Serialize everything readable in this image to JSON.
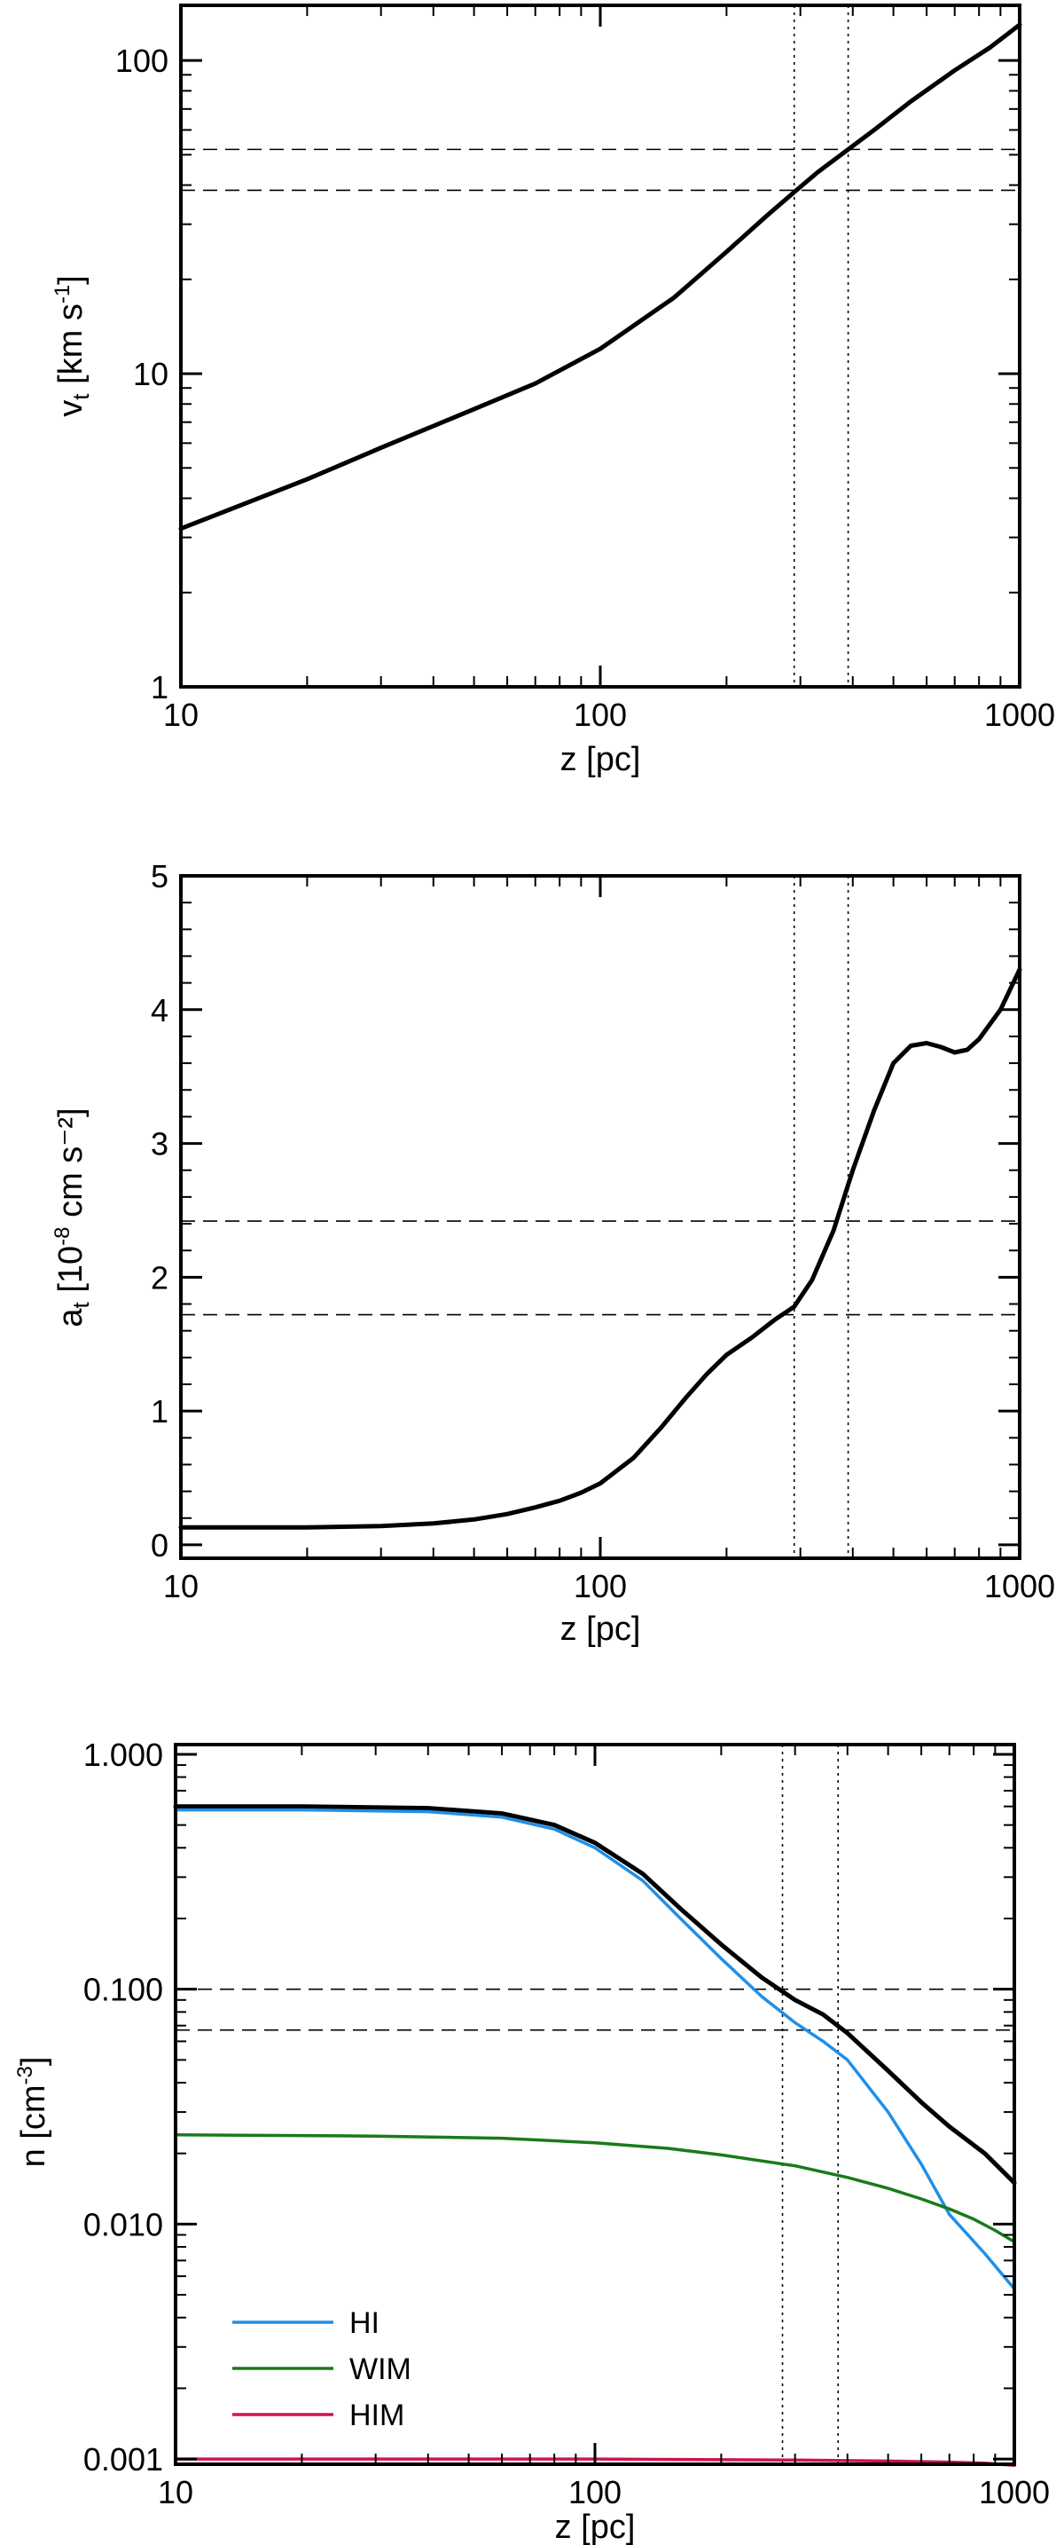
{
  "chart_data": [
    {
      "type": "line",
      "xscale": "log",
      "yscale": "log",
      "xlim": [
        10,
        1000
      ],
      "ylim": [
        1,
        150
      ],
      "xticks": [
        {
          "v": 10,
          "label": "10"
        },
        {
          "v": 100,
          "label": "100"
        },
        {
          "v": 1000,
          "label": "1000"
        }
      ],
      "yticks": [
        {
          "v": 1,
          "label": "1"
        },
        {
          "v": 10,
          "label": "10"
        },
        {
          "v": 100,
          "label": "100"
        }
      ],
      "xlabel": "z [pc]",
      "ylabel": {
        "base": "v",
        "sub": "t",
        "rest": " [km s",
        "sup": "-1",
        "end": "]"
      },
      "series": [
        {
          "color": "#000000",
          "x": [
            10,
            20,
            30,
            50,
            70,
            100,
            150,
            200,
            250,
            290,
            330,
            390,
            450,
            550,
            700,
            850,
            1000
          ],
          "y": [
            3.2,
            4.6,
            5.8,
            7.7,
            9.3,
            12,
            17.5,
            24.5,
            32,
            38,
            44,
            52,
            60,
            74,
            93,
            110,
            130
          ]
        }
      ],
      "hlines": [
        52,
        38.5
      ],
      "vlines": [
        290,
        390
      ]
    },
    {
      "type": "line",
      "xscale": "log",
      "yscale": "linear",
      "xlim": [
        10,
        1000
      ],
      "ylim": [
        -0.1,
        5.0
      ],
      "xticks": [
        {
          "v": 10,
          "label": "10"
        },
        {
          "v": 100,
          "label": "100"
        },
        {
          "v": 1000,
          "label": "1000"
        }
      ],
      "yticks": [
        {
          "v": 0,
          "label": "0"
        },
        {
          "v": 1,
          "label": "1"
        },
        {
          "v": 2,
          "label": "2"
        },
        {
          "v": 3,
          "label": "3"
        },
        {
          "v": 4,
          "label": "4"
        },
        {
          "v": 5,
          "label": "5"
        }
      ],
      "xlabel": "z [pc]",
      "ylabel": {
        "base": "a",
        "sub": "t",
        "rest": " [10",
        "sup": "-8",
        "end": " cm s⁻²]"
      },
      "series": [
        {
          "color": "#000000",
          "x": [
            10,
            20,
            30,
            40,
            50,
            60,
            70,
            80,
            90,
            100,
            120,
            140,
            160,
            180,
            200,
            230,
            260,
            290,
            320,
            360,
            400,
            450,
            500,
            550,
            600,
            650,
            700,
            750,
            800,
            900,
            1000
          ],
          "y": [
            0.13,
            0.13,
            0.14,
            0.16,
            0.19,
            0.23,
            0.28,
            0.33,
            0.39,
            0.46,
            0.65,
            0.88,
            1.1,
            1.28,
            1.42,
            1.55,
            1.68,
            1.78,
            1.98,
            2.35,
            2.8,
            3.25,
            3.6,
            3.73,
            3.75,
            3.72,
            3.68,
            3.7,
            3.78,
            4.0,
            4.3
          ]
        }
      ],
      "hlines": [
        2.42,
        1.72
      ],
      "vlines": [
        290,
        390
      ]
    },
    {
      "type": "line",
      "xscale": "log",
      "yscale": "log",
      "xlim": [
        10,
        1000
      ],
      "ylim": [
        0.00095,
        1.1
      ],
      "xticks": [
        {
          "v": 10,
          "label": "10"
        },
        {
          "v": 100,
          "label": "100"
        },
        {
          "v": 1000,
          "label": "1000"
        }
      ],
      "yticks": [
        {
          "v": 0.001,
          "label": "0.001"
        },
        {
          "v": 0.01,
          "label": "0.010"
        },
        {
          "v": 0.1,
          "label": "0.100"
        },
        {
          "v": 1,
          "label": "1.000"
        }
      ],
      "xlabel": "z [pc]",
      "ylabel": {
        "base": "n [cm",
        "sub": "",
        "rest": "",
        "sup": "-3",
        "end": "]"
      },
      "series": [
        {
          "color": "#000000",
          "x": [
            10,
            20,
            40,
            60,
            80,
            100,
            130,
            160,
            200,
            250,
            300,
            350,
            400,
            500,
            600,
            700,
            850,
            1000
          ],
          "y": [
            0.6,
            0.6,
            0.59,
            0.56,
            0.5,
            0.42,
            0.31,
            0.22,
            0.155,
            0.112,
            0.09,
            0.078,
            0.065,
            0.045,
            0.033,
            0.026,
            0.02,
            0.015
          ]
        },
        {
          "name": "HI",
          "color": "#1f8fe8",
          "x": [
            10,
            20,
            40,
            60,
            80,
            100,
            130,
            160,
            200,
            250,
            300,
            350,
            400,
            500,
            600,
            700,
            850,
            1000
          ],
          "y": [
            0.58,
            0.58,
            0.57,
            0.54,
            0.48,
            0.4,
            0.29,
            0.2,
            0.135,
            0.093,
            0.072,
            0.06,
            0.05,
            0.03,
            0.018,
            0.011,
            0.0075,
            0.0053
          ]
        },
        {
          "name": "WIM",
          "color": "#1a7a1a",
          "x": [
            10,
            30,
            60,
            100,
            150,
            200,
            300,
            400,
            500,
            600,
            700,
            800,
            900,
            1000
          ],
          "y": [
            0.024,
            0.0237,
            0.0232,
            0.0222,
            0.021,
            0.0197,
            0.0177,
            0.0158,
            0.0142,
            0.0128,
            0.0116,
            0.0105,
            0.0094,
            0.0084
          ]
        },
        {
          "name": "HIM",
          "color": "#d0144a",
          "x": [
            10,
            100,
            300,
            500,
            700,
            850,
            1000
          ],
          "y": [
            0.001,
            0.001,
            0.00099,
            0.00098,
            0.00097,
            0.00096,
            0.00094
          ]
        }
      ],
      "hlines": [
        0.1,
        0.067
      ],
      "vlines": [
        280,
        380
      ],
      "legend": {
        "placement": "bottom-left",
        "entries": [
          "HI",
          "WIM",
          "HIM"
        ]
      }
    }
  ]
}
